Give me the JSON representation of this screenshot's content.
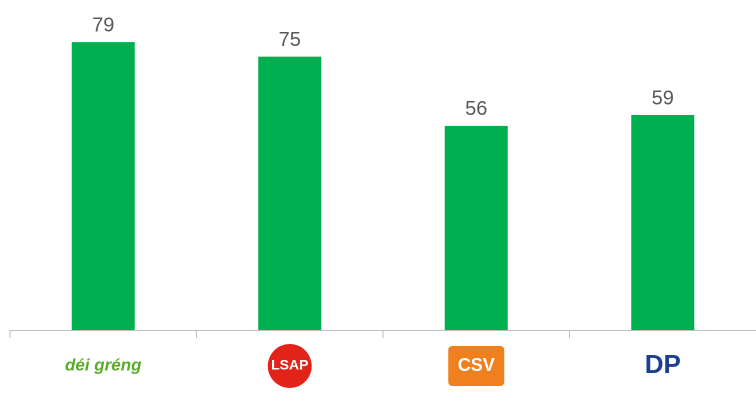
{
  "chart_data": {
    "type": "bar",
    "categories": [
      "déi gréng",
      "LSAP",
      "CSV",
      "DP"
    ],
    "values": [
      79,
      75,
      56,
      59
    ],
    "color": "#00b050",
    "ylim": [
      0,
      90
    ]
  }
}
